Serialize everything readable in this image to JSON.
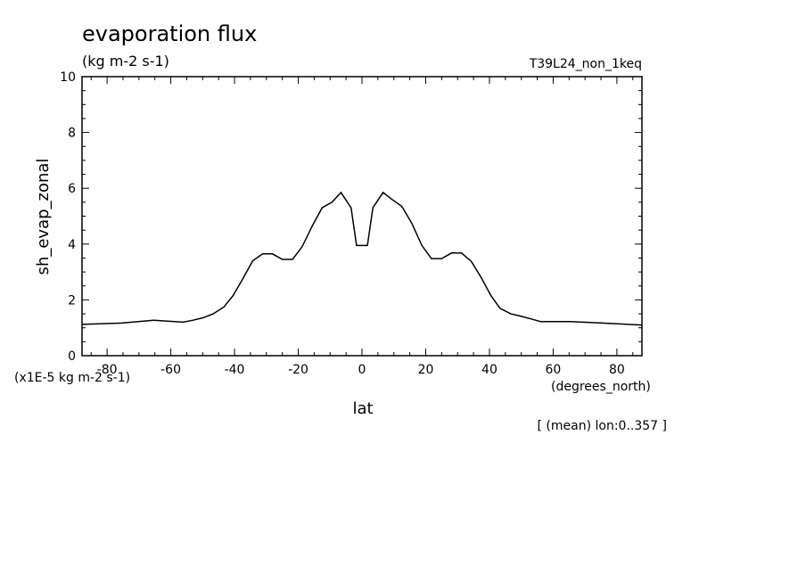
{
  "chart_data": {
    "type": "line",
    "title": "evaporation flux",
    "subtitle": "(kg m-2 s-1)",
    "run_label": "T39L24_non_1keq",
    "xlabel": "lat",
    "xunits": "(degrees_north)",
    "ylabel": "sh_evap_zonal",
    "yscale_note": "(x1E-5 kg m-2 s-1)",
    "footnote": "[ (mean) lon:0..357 ]",
    "xlim": [
      -87.86,
      87.86
    ],
    "ylim": [
      0,
      10
    ],
    "xticks": [
      -80,
      -60,
      -40,
      -20,
      0,
      20,
      40,
      60,
      80
    ],
    "xtick_labels": [
      "-80",
      "-60",
      "-40",
      "-20",
      "0",
      "20",
      "40",
      "60",
      "80"
    ],
    "yticks": [
      0,
      2,
      4,
      6,
      8,
      10
    ],
    "ytick_labels": [
      "0",
      "2",
      "4",
      "6",
      "8",
      "10"
    ],
    "grid": false,
    "x": [
      -87.86,
      -75.4,
      -65.4,
      -56.1,
      -53.0,
      -49.8,
      -46.7,
      -43.3,
      -40.5,
      -37.4,
      -34.3,
      -31.2,
      -28.1,
      -25.0,
      -21.8,
      -18.8,
      -15.6,
      -12.5,
      -9.4,
      -6.6,
      -3.4,
      -1.7,
      0,
      1.7,
      3.4,
      6.6,
      9.4,
      12.5,
      15.6,
      18.8,
      21.8,
      25.0,
      28.1,
      31.2,
      34.3,
      37.4,
      40.5,
      43.3,
      46.7,
      49.8,
      53.0,
      56.1,
      65.4,
      75.4,
      87.86
    ],
    "y": [
      1.12,
      1.17,
      1.27,
      1.2,
      1.27,
      1.36,
      1.5,
      1.75,
      2.15,
      2.75,
      3.4,
      3.65,
      3.65,
      3.45,
      3.45,
      3.9,
      4.65,
      5.3,
      5.5,
      5.85,
      5.3,
      3.95,
      3.95,
      3.95,
      5.3,
      5.85,
      5.6,
      5.35,
      4.75,
      3.95,
      3.48,
      3.48,
      3.68,
      3.68,
      3.38,
      2.8,
      2.15,
      1.7,
      1.5,
      1.42,
      1.32,
      1.22,
      1.22,
      1.17,
      1.1
    ]
  }
}
